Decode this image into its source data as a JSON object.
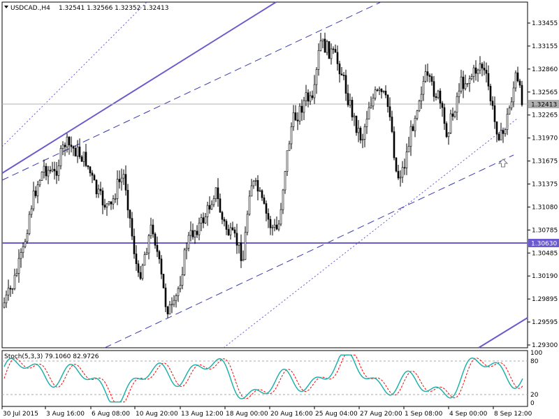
{
  "header": {
    "symbol": "USDCAD.,H4",
    "ohlc": "1.32541 1.32566 1.32352 1.32413"
  },
  "indicator": {
    "label": "Stoch(5,3,3) 79.1060 82.9726",
    "levels": [
      "80",
      "20",
      "100",
      "0"
    ]
  },
  "chart_data": {
    "type": "candlestick",
    "y_ticks": [
      "1.33455",
      "1.33155",
      "1.32860",
      "1.32565",
      "1.32265",
      "1.31970",
      "1.31675",
      "1.31375",
      "1.31080",
      "1.30785",
      "1.30485",
      "1.30190",
      "1.29895",
      "1.29595",
      "1.29300"
    ],
    "ylim": [
      1.293,
      1.3368
    ],
    "x_ticks": [
      "30 Jul 2015",
      "3 Aug 16:00",
      "6 Aug 08:00",
      "10 Aug 20:00",
      "13 Aug 12:00",
      "18 Aug 00:00",
      "20 Aug 16:00",
      "25 Aug 04:00",
      "27 Aug 20:00",
      "1 Sep 08:00",
      "4 Sep 00:00",
      "8 Sep 12:00"
    ],
    "current_price": "1.32413",
    "horizontal_level": "1.30630",
    "colors": {
      "candle": "#000000",
      "trendline": "#6a5acd",
      "grid_level": "#6a5acd",
      "stoch_main": "#20b2aa",
      "stoch_signal": "#ff0000"
    }
  }
}
